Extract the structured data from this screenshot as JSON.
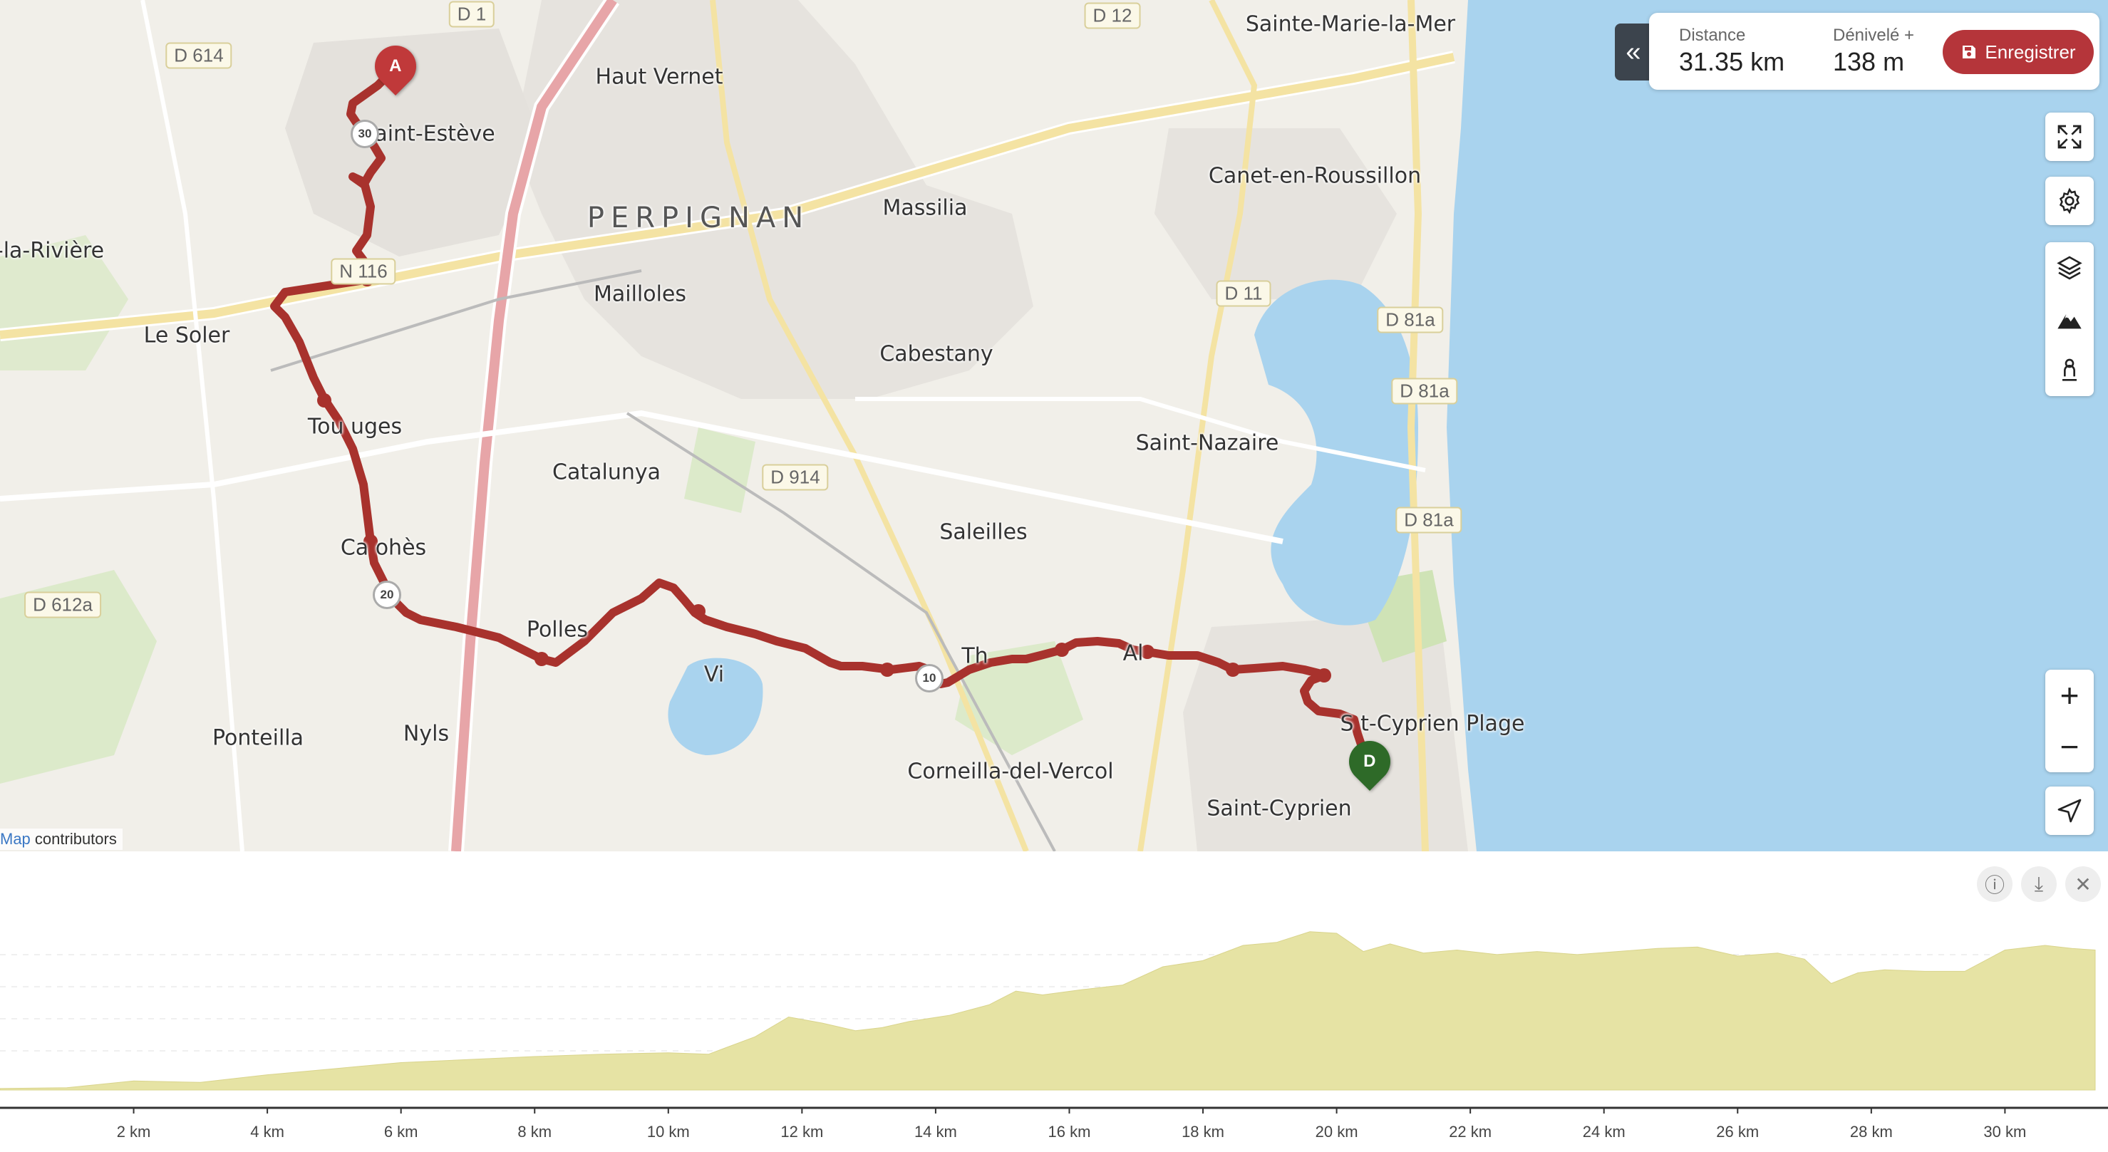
{
  "stats": {
    "distance_label": "Distance",
    "distance_value": "31.35 km",
    "elevation_label": "Dénivelé +",
    "elevation_value": "138 m",
    "save_label": "Enregistrer"
  },
  "colors": {
    "route": "#a8322d",
    "start_marker": "#c0393a",
    "end_marker": "#2e6a28",
    "water": "#a9d3ee",
    "profile_fill": "#e6e3a4",
    "save": "#b5353a"
  },
  "markers": {
    "start_label": "A",
    "end_label": "D"
  },
  "map_labels": {
    "haut_vernet": "Haut Vernet",
    "sainte_marie": "Sainte-Marie-la-Mer",
    "saint_esteve": "aint-Estève",
    "perpignan": "PERPIGNAN",
    "massilia": "Massilia",
    "canet": "Canet-en-Roussillon",
    "la_riviere": "-la-Rivière",
    "mailloles": "Mailloles",
    "le_soler": "Le Soler",
    "cabestany": "Cabestany",
    "toulouges": "Tou  uges",
    "saint_nazaire": "Saint-Nazaire",
    "catalunya": "Catalunya",
    "saleilles": "Saleilles",
    "canohes": "Ca  ohès",
    "pollestres": "Polles   ",
    "vi": "Vi",
    "th": "Th",
    "alen": "Al",
    "saint_cyprien_plage": "S   t-Cyprien Plage",
    "ponteilla": "Ponteilla",
    "nyls": "Nyls",
    "corneilla": "Corneilla-del-Vercol",
    "saint_cyprien": "Saint-Cyprien"
  },
  "road_labels": {
    "d1": "D 1",
    "d12": "D 12",
    "d614": "D 614",
    "n116": "N 116",
    "d11": "D 11",
    "d81a_1": "D 81a",
    "d81a_2": "D 81a",
    "d81a_3": "D 81a",
    "d914": "D 914",
    "d612a": "D 612a"
  },
  "shields": {
    "s30": "30",
    "s20": "20",
    "s10": "10"
  },
  "attribution": {
    "link": "Map",
    "text": " contributors"
  },
  "controls": {
    "fullscreen": "expand-icon",
    "settings": "gear-icon",
    "layers": "layers-icon",
    "terrain": "mountain-icon",
    "person": "person-icon",
    "zoom_in": "+",
    "zoom_out": "−",
    "locate": "locate-icon"
  },
  "profile": {
    "x_ticks": [
      "2 km",
      "4 km",
      "6 km",
      "8 km",
      "10 km",
      "12 km",
      "14 km",
      "16 km",
      "18 km",
      "20 km",
      "22 km",
      "24 km",
      "26 km",
      "28 km",
      "30 km"
    ],
    "x_unit_km": [
      2,
      4,
      6,
      8,
      10,
      12,
      14,
      16,
      18,
      20,
      22,
      24,
      26,
      28,
      30
    ],
    "total_km": 31.35,
    "elevation_relative": [
      [
        0,
        0.02
      ],
      [
        1,
        0.03
      ],
      [
        2,
        0.12
      ],
      [
        3,
        0.1
      ],
      [
        4,
        0.2
      ],
      [
        5,
        0.28
      ],
      [
        6,
        0.36
      ],
      [
        7,
        0.4
      ],
      [
        8,
        0.44
      ],
      [
        9,
        0.47
      ],
      [
        10,
        0.49
      ],
      [
        10.6,
        0.47
      ],
      [
        11.3,
        0.7
      ],
      [
        11.8,
        0.96
      ],
      [
        12.3,
        0.88
      ],
      [
        12.8,
        0.78
      ],
      [
        13.2,
        0.82
      ],
      [
        13.6,
        0.9
      ],
      [
        14.2,
        0.98
      ],
      [
        14.8,
        1.12
      ],
      [
        15.2,
        1.3
      ],
      [
        15.6,
        1.25
      ],
      [
        16.2,
        1.32
      ],
      [
        16.8,
        1.38
      ],
      [
        17.4,
        1.62
      ],
      [
        18,
        1.7
      ],
      [
        18.6,
        1.9
      ],
      [
        19.1,
        1.94
      ],
      [
        19.6,
        2.08
      ],
      [
        20.0,
        2.06
      ],
      [
        20.4,
        1.82
      ],
      [
        20.8,
        1.92
      ],
      [
        21.3,
        1.8
      ],
      [
        21.8,
        1.84
      ],
      [
        22.4,
        1.78
      ],
      [
        23,
        1.82
      ],
      [
        23.6,
        1.78
      ],
      [
        24.2,
        1.82
      ],
      [
        24.8,
        1.86
      ],
      [
        25.4,
        1.88
      ],
      [
        26,
        1.76
      ],
      [
        26.6,
        1.8
      ],
      [
        27.0,
        1.72
      ],
      [
        27.4,
        1.4
      ],
      [
        27.8,
        1.54
      ],
      [
        28.2,
        1.58
      ],
      [
        28.8,
        1.56
      ],
      [
        29.4,
        1.56
      ],
      [
        30.0,
        1.84
      ],
      [
        30.6,
        1.9
      ],
      [
        31.0,
        1.86
      ],
      [
        31.35,
        1.84
      ]
    ]
  }
}
